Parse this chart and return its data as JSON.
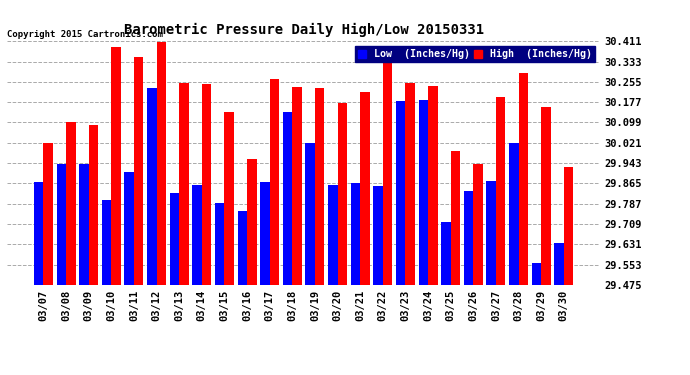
{
  "title": "Barometric Pressure Daily High/Low 20150331",
  "copyright": "Copyright 2015 Cartronics.com",
  "legend_low": "Low  (Inches/Hg)",
  "legend_high": "High  (Inches/Hg)",
  "dates": [
    "03/07",
    "03/08",
    "03/09",
    "03/10",
    "03/11",
    "03/12",
    "03/13",
    "03/14",
    "03/15",
    "03/16",
    "03/17",
    "03/18",
    "03/19",
    "03/20",
    "03/21",
    "03/22",
    "03/23",
    "03/24",
    "03/25",
    "03/26",
    "03/27",
    "03/28",
    "03/29",
    "03/30"
  ],
  "low": [
    29.87,
    29.94,
    29.94,
    29.8,
    29.91,
    30.23,
    29.83,
    29.86,
    29.79,
    29.76,
    29.87,
    30.14,
    30.02,
    29.86,
    29.865,
    29.855,
    30.18,
    30.185,
    29.715,
    29.835,
    29.875,
    30.02,
    29.56,
    29.635
  ],
  "high": [
    30.02,
    30.1,
    30.09,
    30.39,
    30.35,
    30.41,
    30.25,
    30.245,
    30.14,
    29.96,
    30.265,
    30.235,
    30.23,
    30.175,
    30.215,
    30.33,
    30.25,
    30.24,
    29.99,
    29.94,
    30.195,
    30.29,
    30.16,
    29.93
  ],
  "ylim_min": 29.475,
  "ylim_max": 30.411,
  "yticks": [
    29.475,
    29.553,
    29.631,
    29.709,
    29.787,
    29.865,
    29.943,
    30.021,
    30.099,
    30.177,
    30.255,
    30.333,
    30.411
  ],
  "color_low": "#0000ff",
  "color_high": "#ff0000",
  "bg_color": "#ffffff",
  "grid_color": "#aaaaaa",
  "bar_width": 0.42
}
